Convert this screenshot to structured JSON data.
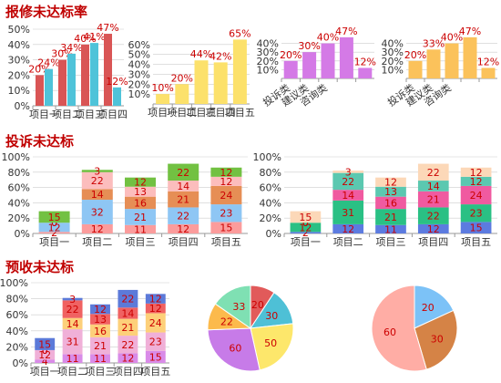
{
  "sections": {
    "repair": "报修未达标率",
    "complaint": "投诉未达标",
    "acceptance": "预收未达标"
  },
  "colors": {
    "bar_a": "#d95555",
    "bar_b": "#4fc3d9",
    "bar_yellow": "#fce16b",
    "bar_violet": "#d47ae6",
    "bar_orange": "#fbc25b",
    "label": "#cc0000",
    "stack": [
      "#ffa5a5",
      "#ddc3f1",
      "#e99e54",
      "#8ec2f2",
      "#fe9d95",
      "#bb4eb6"
    ]
  },
  "chart_data": [
    {
      "id": "repair-1",
      "type": "bar",
      "categories": [
        "项目一",
        "项目二",
        "项目三",
        "项目四"
      ],
      "series": [
        {
          "values": [
            20,
            30,
            40,
            47
          ],
          "color": "#d95555"
        },
        {
          "values": [
            24,
            34,
            41,
            12
          ],
          "color": "#4fc3d9"
        }
      ],
      "unit": "%",
      "ylim": [
        0,
        50
      ],
      "yticks": [
        0,
        10,
        20,
        30,
        40,
        50
      ]
    },
    {
      "id": "repair-2",
      "type": "bar",
      "categories": [
        "项目一",
        "项目二",
        "项目三",
        "项目四",
        "项目五"
      ],
      "series": [
        {
          "values": [
            10,
            20,
            44,
            42,
            65
          ],
          "color": "#fce16b"
        }
      ],
      "unit": "%",
      "ylim": [
        0,
        70
      ],
      "yticks": [
        10,
        20,
        30,
        40,
        50,
        60
      ]
    },
    {
      "id": "repair-3",
      "type": "bar",
      "categories": [
        "投诉类",
        "建议类",
        "咨询类",
        "",
        ""
      ],
      "series": [
        {
          "values": [
            20,
            30,
            40,
            47,
            12
          ],
          "color": "#d47ae6"
        }
      ],
      "unit": "%",
      "ylim": [
        0,
        50
      ],
      "yticks": [
        10,
        20,
        30,
        40
      ]
    },
    {
      "id": "repair-4",
      "type": "bar",
      "categories": [
        "投诉类",
        "建议类",
        "咨询类",
        "",
        ""
      ],
      "series": [
        {
          "values": [
            20,
            33,
            40,
            47,
            12
          ],
          "color": "#fbc25b"
        }
      ],
      "unit": "%",
      "ylim": [
        0,
        50
      ],
      "yticks": [
        10,
        20,
        30,
        40
      ]
    },
    {
      "id": "complaint-1",
      "type": "bar",
      "stacked": true,
      "categories": [
        "项目一",
        "项目二",
        "项目三",
        "项目四",
        "项目五"
      ],
      "series": [
        {
          "values": [
            2,
            12,
            11,
            12,
            15
          ],
          "color": "#fb9c9c"
        },
        {
          "values": [
            12,
            32,
            21,
            22,
            23
          ],
          "color": "#8ec6f4"
        },
        {
          "values": [
            0,
            14,
            16,
            21,
            24
          ],
          "color": "#e68e55"
        },
        {
          "values": [
            0,
            22,
            13,
            14,
            12
          ],
          "color": "#fcbdbd"
        },
        {
          "values": [
            15,
            3,
            12,
            22,
            12
          ],
          "color": "#72c142"
        }
      ],
      "unit": "%",
      "ylim": [
        0,
        100
      ],
      "yticks": [
        0,
        20,
        40,
        60,
        80,
        100
      ]
    },
    {
      "id": "complaint-2",
      "type": "bar",
      "stacked": true,
      "categories": [
        "项目一",
        "项目二",
        "项目三",
        "项目四",
        "项目五"
      ],
      "series": [
        {
          "values": [
            2,
            12,
            11,
            12,
            15
          ],
          "color": "#5c7be0"
        },
        {
          "values": [
            12,
            31,
            21,
            22,
            23
          ],
          "color": "#2ac084"
        },
        {
          "values": [
            0,
            14,
            16,
            21,
            24
          ],
          "color": "#f05aa0"
        },
        {
          "values": [
            0,
            22,
            13,
            14,
            12
          ],
          "color": "#5bc8b0"
        },
        {
          "values": [
            15,
            3,
            12,
            22,
            12
          ],
          "color": "#fcd8b8"
        }
      ],
      "unit": "%",
      "ylim": [
        0,
        100
      ],
      "yticks": [
        0,
        20,
        40,
        60,
        80,
        100
      ]
    },
    {
      "id": "acceptance-1",
      "type": "bar",
      "stacked": true,
      "categories": [
        "项目一",
        "项目二",
        "项目三",
        "项目四",
        "项目五"
      ],
      "series": [
        {
          "values": [
            4,
            11,
            11,
            12,
            15
          ],
          "color": "#d98be8"
        },
        {
          "values": [
            12,
            31,
            21,
            22,
            23
          ],
          "color": "#f0b0d8"
        },
        {
          "values": [
            0,
            14,
            16,
            21,
            24
          ],
          "color": "#fdd07a"
        },
        {
          "values": [
            0,
            22,
            13,
            14,
            12
          ],
          "color": "#f06262"
        },
        {
          "values": [
            15,
            3,
            12,
            22,
            12
          ],
          "color": "#5c7ad9"
        }
      ],
      "unit": "%",
      "ylim": [
        0,
        100
      ],
      "yticks": [
        0,
        20,
        40,
        60,
        80,
        100
      ]
    },
    {
      "id": "pie-1",
      "type": "pie",
      "values": [
        20,
        30,
        50,
        60,
        22,
        33
      ],
      "colors": [
        "#e15a5a",
        "#4ec0d6",
        "#fde76b",
        "#c77be8",
        "#fcba4c",
        "#7fe0b3"
      ]
    },
    {
      "id": "pie-2",
      "type": "pie",
      "values": [
        20,
        30,
        60
      ],
      "colors": [
        "#7cc2f7",
        "#d58346",
        "#ffada5"
      ]
    }
  ]
}
